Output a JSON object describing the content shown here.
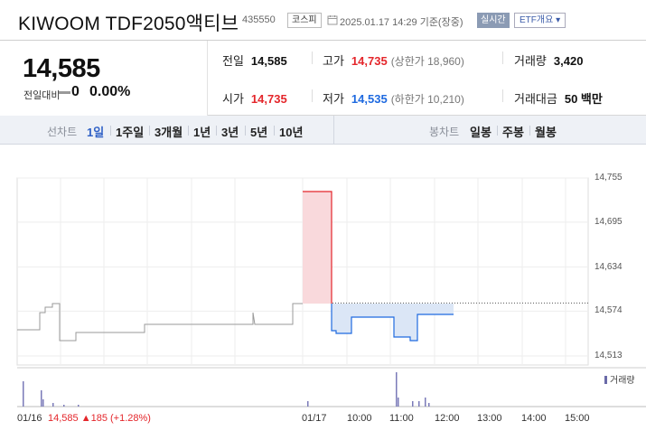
{
  "header": {
    "name": "KIWOOM TDF2050액티브",
    "code": "435550",
    "market": "코스피",
    "datetime": "2025.01.17 14:29 기준(장중)",
    "realtime": "실시간",
    "etf_info": "ETF개요 ▾"
  },
  "quote": {
    "price": "14,585",
    "change_label": "전일대비",
    "change_value": "0",
    "change_pct": "0.00%",
    "prev_close_label": "전일",
    "prev_close": "14,585",
    "high_label": "고가",
    "high": "14,735",
    "upper_limit": "(상한가 18,960)",
    "volume_label": "거래량",
    "volume": "3,420",
    "open_label": "시가",
    "open": "14,735",
    "low_label": "저가",
    "low": "14,535",
    "lower_limit": "(하한가 10,210)",
    "trade_value_label": "거래대금",
    "trade_value": "50 백만"
  },
  "toolbar": {
    "line_label": "선차트",
    "line_periods": [
      "1일",
      "1주일",
      "3개월",
      "1년",
      "3년",
      "5년",
      "10년"
    ],
    "selected": "1일",
    "candle_label": "봉차트",
    "candle_periods": [
      "일봉",
      "주봉",
      "월봉"
    ]
  },
  "chart_data": {
    "type": "line",
    "y_ticks": [
      "14,755",
      "14,695",
      "14,634",
      "14,574",
      "14,513"
    ],
    "ylim": [
      14513,
      14755
    ],
    "x_ticks": [
      "01/16",
      "01/17",
      "10:00",
      "11:00",
      "12:00",
      "13:00",
      "14:00",
      "15:00"
    ],
    "previous_close": 14585,
    "volume_legend": "거래량",
    "prev_day_summary": {
      "price": "14,585",
      "change": "▲185 (+1.28%)"
    },
    "colors": {
      "up": "#e4262b",
      "down": "#1f6ae0",
      "prev": "#9a9a9a",
      "volume": "#7a7ab8"
    }
  }
}
